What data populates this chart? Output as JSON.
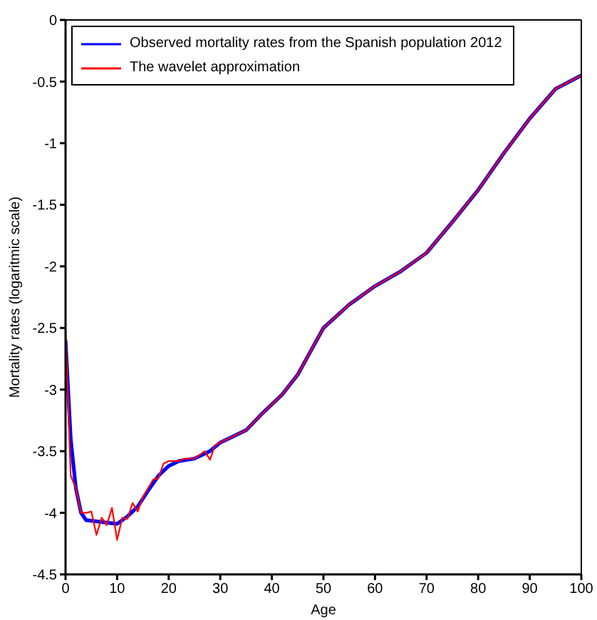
{
  "chart_data": {
    "type": "line",
    "xlabel": "Age",
    "ylabel": "Mortality rates (logaritmic scale)",
    "xlim": [
      0,
      100
    ],
    "xticks": [
      0,
      10,
      20,
      30,
      40,
      50,
      60,
      70,
      80,
      90,
      100
    ],
    "ylim": [
      -4.5,
      0
    ],
    "yticks": [
      -4.5,
      -4,
      -3.5,
      -3,
      -2.5,
      -2,
      -1.5,
      -1,
      -0.5,
      0
    ],
    "grid": false,
    "legend": "top left",
    "marker": "none",
    "line_style": "solid",
    "series": [
      {
        "name": "Observed mortality rates from the Spanish population 2012",
        "color": "#0000ff",
        "x": [
          0,
          1,
          2,
          3,
          4,
          6,
          8,
          10,
          12,
          14,
          16,
          18,
          20,
          22,
          25,
          28,
          30,
          32,
          35,
          38,
          40,
          42,
          45,
          50,
          55,
          60,
          65,
          70,
          75,
          80,
          85,
          90,
          95,
          100
        ],
        "values": [
          -2.6,
          -3.4,
          -3.8,
          -4.0,
          -4.06,
          -4.07,
          -4.08,
          -4.09,
          -4.03,
          -3.95,
          -3.82,
          -3.7,
          -3.62,
          -3.58,
          -3.56,
          -3.5,
          -3.43,
          -3.39,
          -3.33,
          -3.2,
          -3.12,
          -3.04,
          -2.88,
          -2.5,
          -2.31,
          -2.16,
          -2.04,
          -1.89,
          -1.64,
          -1.38,
          -1.08,
          -0.8,
          -0.56,
          -0.45
        ]
      },
      {
        "name": "The wavelet approximation",
        "color": "#ff0000",
        "x": [
          0,
          1,
          2,
          3,
          4,
          5,
          6,
          7,
          8,
          9,
          10,
          11,
          12,
          13,
          14,
          15,
          16,
          17,
          18,
          19,
          20,
          22,
          23,
          25,
          27,
          28,
          29,
          30,
          32,
          35,
          38,
          40,
          42,
          45,
          50,
          55,
          60,
          65,
          70,
          75,
          80,
          85,
          90,
          95,
          100
        ],
        "values": [
          -2.5,
          -3.7,
          -3.8,
          -4.0,
          -4.0,
          -3.99,
          -4.18,
          -4.04,
          -4.1,
          -3.96,
          -4.22,
          -4.04,
          -4.05,
          -3.92,
          -3.99,
          -3.87,
          -3.8,
          -3.73,
          -3.72,
          -3.6,
          -3.58,
          -3.58,
          -3.56,
          -3.56,
          -3.5,
          -3.57,
          -3.45,
          -3.43,
          -3.39,
          -3.33,
          -3.2,
          -3.12,
          -3.04,
          -2.88,
          -2.5,
          -2.31,
          -2.16,
          -2.04,
          -1.89,
          -1.64,
          -1.38,
          -1.08,
          -0.8,
          -0.56,
          -0.45
        ]
      }
    ]
  }
}
